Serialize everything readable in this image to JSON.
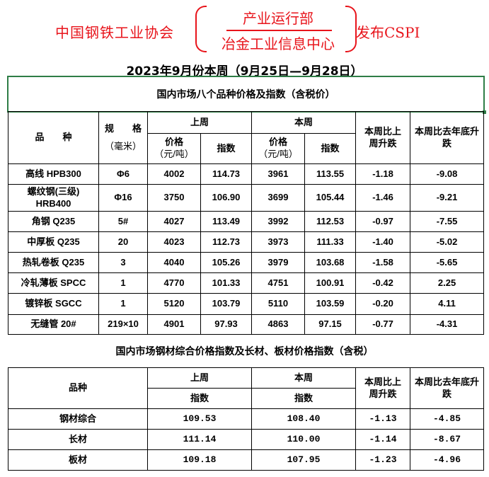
{
  "header": {
    "org": "中国钢铁工业协会",
    "dept": "产业运行部",
    "center": "冶金工业信息中心",
    "publish": "发布CSPI",
    "period": "2023年9月份本周（9月25日—9月28日）"
  },
  "table1": {
    "title": "国内市场八个品种价格及指数（含税价）",
    "headers": {
      "variety": "品　　种",
      "spec": "规　　格",
      "spec_unit": "（毫米）",
      "last_week": "上周",
      "this_week": "本周",
      "price": "价格",
      "price_unit": "（元/吨）",
      "index": "指数",
      "wow": "本周比上周升跌",
      "ytd": "本周比去年底升跌"
    },
    "rows": [
      {
        "name": "高线 HPB300",
        "spec": "Φ6",
        "lw_price": "4002",
        "lw_index": "114.73",
        "tw_price": "3961",
        "tw_index": "113.55",
        "wow": "-1.18",
        "ytd": "-9.08"
      },
      {
        "name": "螺纹钢(三级) HRB400",
        "spec": "Φ16",
        "lw_price": "3750",
        "lw_index": "106.90",
        "tw_price": "3699",
        "tw_index": "105.44",
        "wow": "-1.46",
        "ytd": "-9.21"
      },
      {
        "name": "角钢 Q235",
        "spec": "5#",
        "lw_price": "4027",
        "lw_index": "113.49",
        "tw_price": "3992",
        "tw_index": "112.53",
        "wow": "-0.97",
        "ytd": "-7.55"
      },
      {
        "name": "中厚板 Q235",
        "spec": "20",
        "lw_price": "4023",
        "lw_index": "112.73",
        "tw_price": "3973",
        "tw_index": "111.33",
        "wow": "-1.40",
        "ytd": "-5.02"
      },
      {
        "name": "热轧卷板 Q235",
        "spec": "3",
        "lw_price": "4040",
        "lw_index": "105.26",
        "tw_price": "3979",
        "tw_index": "103.68",
        "wow": "-1.58",
        "ytd": "-5.65"
      },
      {
        "name": "冷轧薄板 SPCC",
        "spec": "1",
        "lw_price": "4770",
        "lw_index": "101.33",
        "tw_price": "4751",
        "tw_index": "100.91",
        "wow": "-0.42",
        "ytd": "2.25"
      },
      {
        "name": "镀锌板 SGCC",
        "spec": "1",
        "lw_price": "5120",
        "lw_index": "103.79",
        "tw_price": "5110",
        "tw_index": "103.59",
        "wow": "-0.20",
        "ytd": "4.11"
      },
      {
        "name": "无缝管 20#",
        "spec": "219×10",
        "lw_price": "4901",
        "lw_index": "97.93",
        "tw_price": "4863",
        "tw_index": "97.15",
        "wow": "-0.77",
        "ytd": "-4.31"
      }
    ]
  },
  "table2": {
    "title": "国内市场钢材综合价格指数及长材、板材价格指数（含税）",
    "headers": {
      "variety": "品种",
      "last_week": "上周",
      "this_week": "本周",
      "index": "指数",
      "wow": "本周比上周升跌",
      "ytd": "本周比去年底升跌"
    },
    "rows": [
      {
        "name": "钢材综合",
        "lw": "109.53",
        "tw": "108.40",
        "wow": "-1.13",
        "ytd": "-4.85"
      },
      {
        "name": "长材",
        "lw": "111.14",
        "tw": "110.00",
        "wow": "-1.14",
        "ytd": "-8.67"
      },
      {
        "name": "板材",
        "lw": "109.18",
        "tw": "107.95",
        "wow": "-1.23",
        "ytd": "-4.96"
      }
    ]
  },
  "colors": {
    "title_red": "#e8141b",
    "box_green": "#2e7d46"
  }
}
